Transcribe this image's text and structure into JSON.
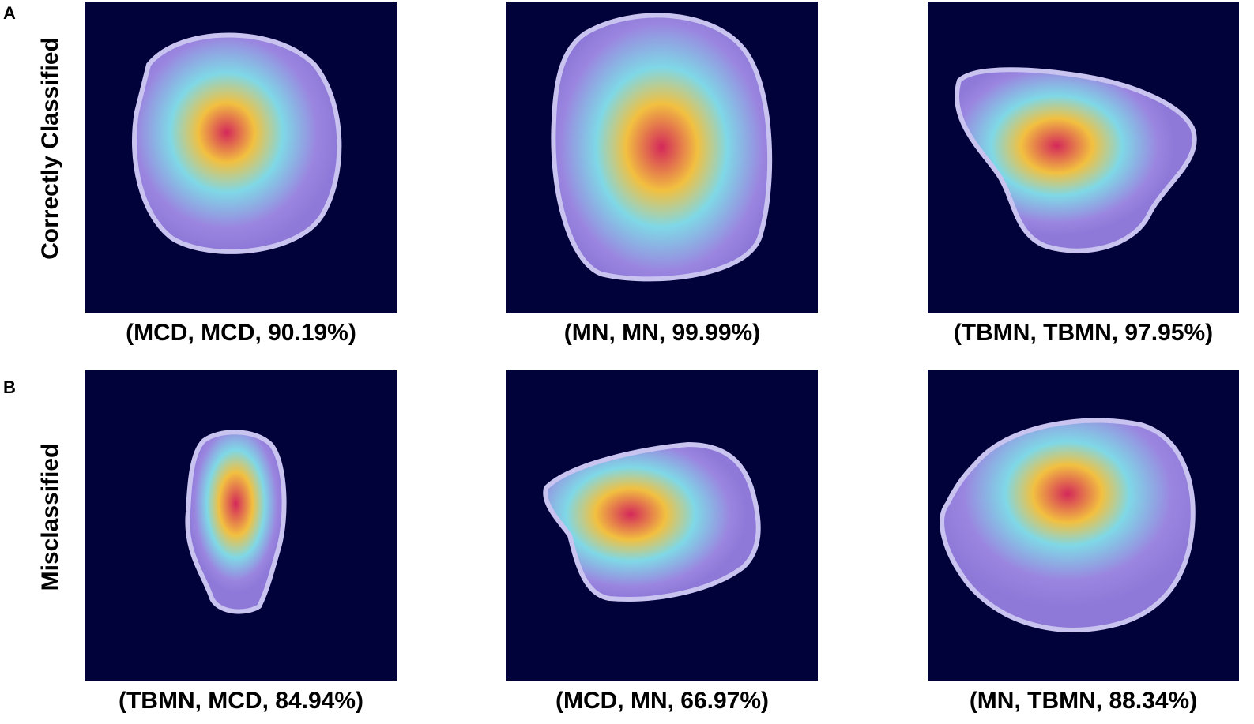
{
  "panels": [
    {
      "letter": "A",
      "row_label": "Correctly Classified",
      "tiles": [
        {
          "caption": "(MCD, MCD, 90.19%)"
        },
        {
          "caption": "(MN, MN, 99.99%)"
        },
        {
          "caption": "(TBMN, TBMN, 97.95%)"
        }
      ]
    },
    {
      "letter": "B",
      "row_label": "Misclassified",
      "tiles": [
        {
          "caption": "(TBMN, MCD, 84.94%)"
        },
        {
          "caption": "(MCD, MN, 66.97%)"
        },
        {
          "caption": "(MN, TBMN, 88.34%)"
        }
      ]
    }
  ],
  "colors": {
    "background": "#02023a",
    "tissue": "#9a86e0",
    "tissue_edge": "#c9c3f0",
    "hot": "#d4285a",
    "warm": "#f2c040",
    "cool": "#7fd8e6"
  }
}
